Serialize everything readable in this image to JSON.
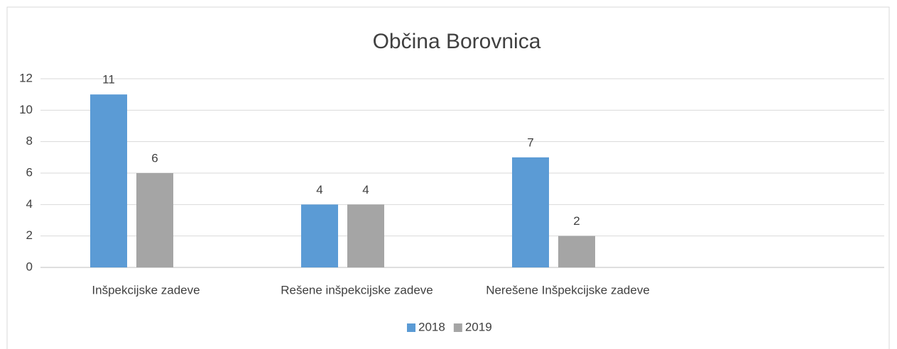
{
  "chart_data": {
    "type": "bar",
    "title": "Občina Borovnica",
    "categories": [
      "Inšpekcijske zadeve",
      "Rešene inšpekcijske zadeve",
      "Nerešene Inšpekcijske zadeve",
      null
    ],
    "series": [
      {
        "name": "2018",
        "color": "#5b9bd5",
        "values": [
          11,
          4,
          7,
          null
        ]
      },
      {
        "name": "2019",
        "color": "#a5a5a5",
        "values": [
          6,
          4,
          2,
          null
        ]
      }
    ],
    "ylim": [
      0,
      12
    ],
    "yticks": [
      0,
      2,
      4,
      6,
      8,
      10,
      12
    ],
    "grid": true,
    "legend": "bottom"
  }
}
